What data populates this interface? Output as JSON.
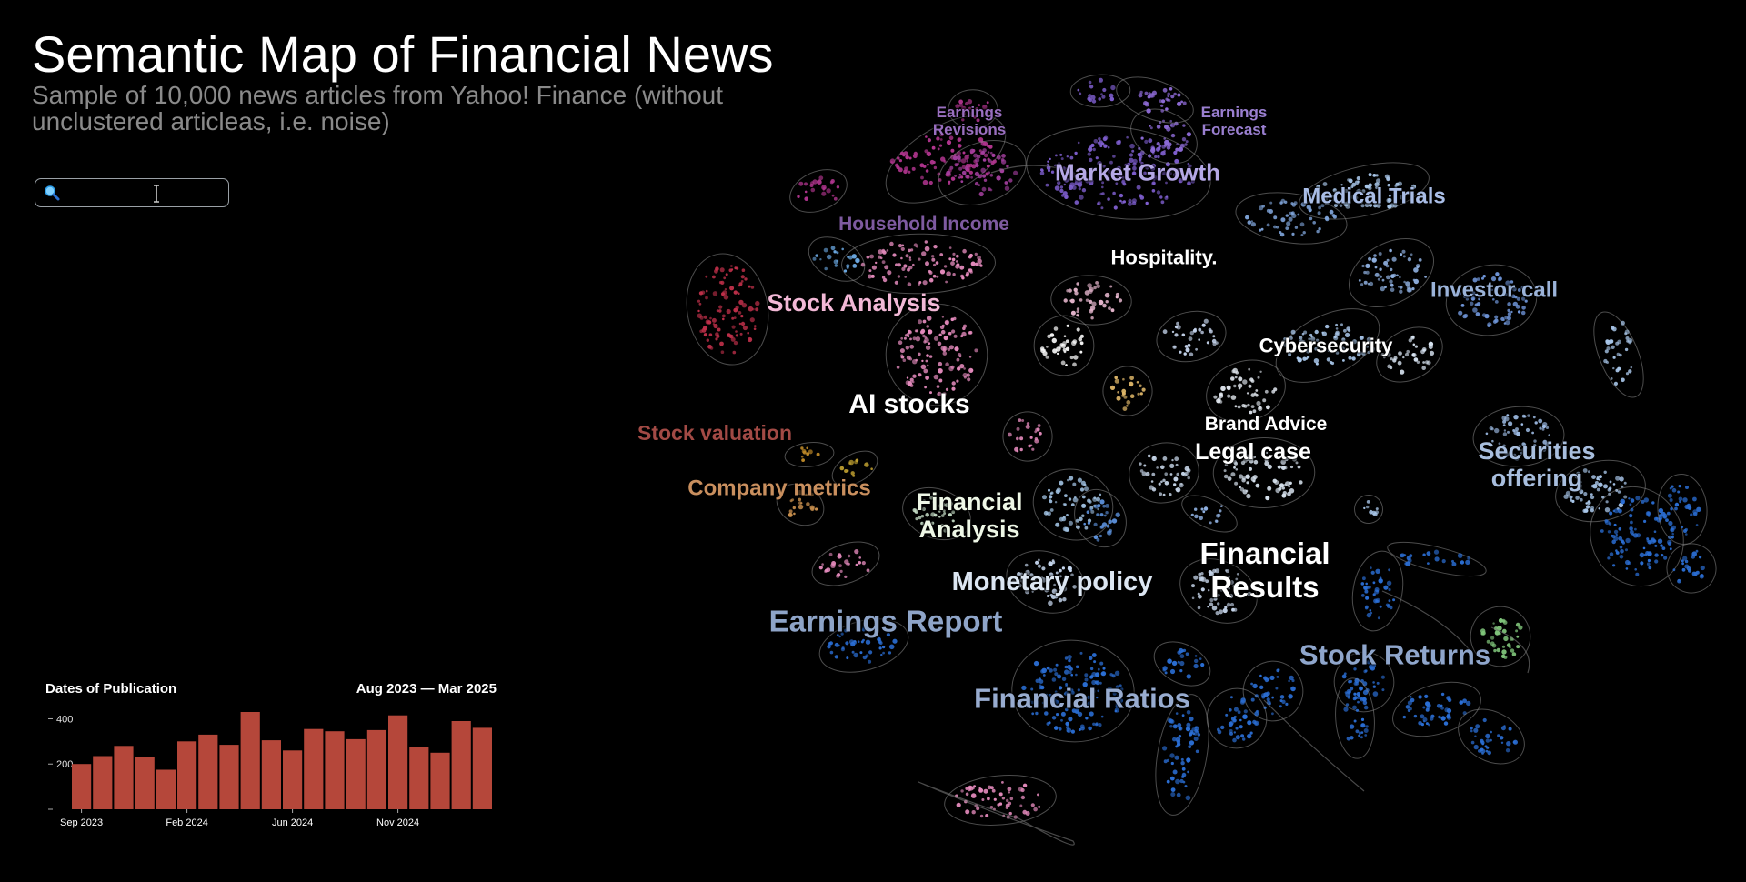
{
  "header": {
    "title": "Semantic Map of Financial News",
    "subtitle": "Sample of 10,000 news articles from Yahoo! Finance (without unclustered articleas, i.e. noise)"
  },
  "search": {
    "value": "",
    "placeholder": "",
    "icon": "magnifier-icon"
  },
  "map": {
    "labels": [
      {
        "text": "Earnings Revisions",
        "color": "#9a6fc0",
        "size": 17
      },
      {
        "text": "Earnings Forecast",
        "color": "#9a7fd0",
        "size": 17
      },
      {
        "text": "Market Growth",
        "color": "#b5a8e6",
        "size": 26
      },
      {
        "text": "Medical Trials",
        "color": "#a9bde6",
        "size": 24
      },
      {
        "text": "Household Income",
        "color": "#7e5aa0",
        "size": 21
      },
      {
        "text": "Hospitality.",
        "color": "#ffffff",
        "size": 22
      },
      {
        "text": "Stock Analysis",
        "color": "#f2b8d6",
        "size": 27
      },
      {
        "text": "Investor call",
        "color": "#9bb3d9",
        "size": 24
      },
      {
        "text": "Cybersecurity",
        "color": "#ffffff",
        "size": 22
      },
      {
        "text": "AI stocks",
        "color": "#ffffff",
        "size": 30
      },
      {
        "text": "Brand Advice",
        "color": "#ffffff",
        "size": 21
      },
      {
        "text": "Legal case",
        "color": "#ffffff",
        "size": 25
      },
      {
        "text": "Stock valuation",
        "color": "#a24a45",
        "size": 23
      },
      {
        "text": "Securities offering",
        "color": "#a8bede",
        "size": 27
      },
      {
        "text": "Company metrics",
        "color": "#c98f5e",
        "size": 24
      },
      {
        "text": "Financial Analysis",
        "color": "#eef7e6",
        "size": 27
      },
      {
        "text": "Financial Results",
        "color": "#ffffff",
        "size": 33
      },
      {
        "text": "Monetary policy",
        "color": "#dce6f2",
        "size": 29
      },
      {
        "text": "Earnings Report",
        "color": "#8ea4c8",
        "size": 33
      },
      {
        "text": "Stock Returns",
        "color": "#8fa6cc",
        "size": 31
      },
      {
        "text": "Financial Ratios",
        "color": "#98acd0",
        "size": 31
      }
    ],
    "colors": {
      "blue": "#2b6fd6",
      "light_blue": "#a9c7ea",
      "pink": "#e58bbd",
      "magenta": "#b2358f",
      "purple": "#7f5fd0",
      "red": "#c0304a",
      "orange": "#c8902a",
      "green": "#7fc47a",
      "grey_line": "#8a8a8a"
    }
  },
  "histogram": {
    "title": "Dates of Publication",
    "range": "Aug 2023 — Mar 2025",
    "bar_color": "#b5473a",
    "chart_data": {
      "type": "bar",
      "ylim": [
        0,
        430
      ],
      "ytick_labels": [
        "200",
        "400"
      ],
      "xtick_labels": [
        "Sep 2023",
        "Feb 2024",
        "Jun 2024",
        "Nov 2024"
      ],
      "values": [
        200,
        235,
        280,
        230,
        175,
        300,
        330,
        285,
        430,
        305,
        260,
        355,
        345,
        310,
        350,
        415,
        275,
        250,
        390,
        360
      ]
    }
  }
}
